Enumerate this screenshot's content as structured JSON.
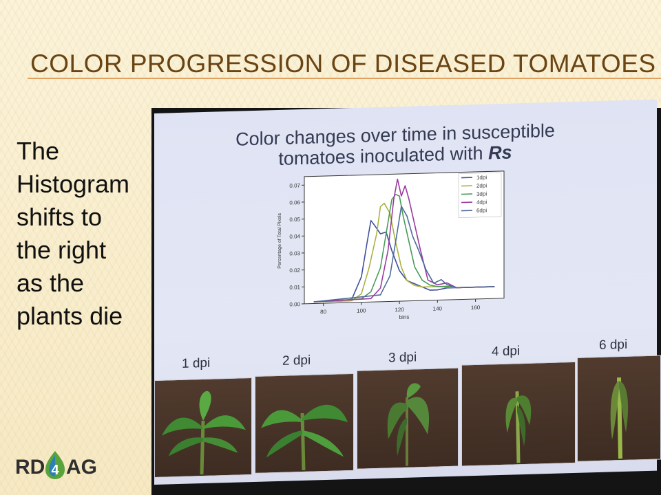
{
  "slide": {
    "title": "COLOR PROGRESSION OF DISEASED TOMATOES",
    "body_lines": [
      "The",
      "Histogram",
      "shifts to",
      "the right",
      "as the",
      "plants die"
    ],
    "logo_text_left": "RD",
    "logo_text_right": "AG",
    "logo_glyph": "4"
  },
  "screen": {
    "title_line1": "Color changes over time in susceptible",
    "title_line2_prefix": "tomatoes inoculated with ",
    "title_line2_italic": "Rs",
    "dpi_labels": [
      "1 dpi",
      "2 dpi",
      "3 dpi",
      "4 dpi",
      "6 dpi"
    ]
  },
  "chart_data": {
    "type": "line",
    "title": "",
    "xlabel": "bins",
    "ylabel": "Percentage of Total Pixels",
    "xlim": [
      70,
      175
    ],
    "ylim": [
      0,
      0.075
    ],
    "xticks": [
      "80",
      "100",
      "120",
      "140",
      "160"
    ],
    "yticks": [
      "0.00",
      "0.01",
      "0.02",
      "0.03",
      "0.04",
      "0.05",
      "0.06",
      "0.07"
    ],
    "legend_position": "top-right",
    "grid": false,
    "series": [
      {
        "name": "1dpi",
        "color": "#3d4f9a",
        "x": [
          75,
          90,
          95,
          100,
          103,
          105,
          107,
          110,
          113,
          116,
          120,
          124,
          128,
          132,
          136,
          140,
          145,
          150,
          160,
          170
        ],
        "y": [
          0.001,
          0.001,
          0.002,
          0.015,
          0.035,
          0.048,
          0.045,
          0.04,
          0.041,
          0.03,
          0.018,
          0.012,
          0.01,
          0.008,
          0.006,
          0.006,
          0.007,
          0.007,
          0.007,
          0.007
        ]
      },
      {
        "name": "2dpi",
        "color": "#a9b240",
        "x": [
          75,
          95,
          100,
          104,
          108,
          110,
          112,
          115,
          118,
          121,
          124,
          128,
          132,
          136,
          140,
          150,
          160,
          170
        ],
        "y": [
          0.001,
          0.001,
          0.005,
          0.02,
          0.04,
          0.056,
          0.058,
          0.052,
          0.035,
          0.02,
          0.012,
          0.009,
          0.008,
          0.008,
          0.008,
          0.007,
          0.007,
          0.007
        ]
      },
      {
        "name": "3dpi",
        "color": "#4a9a5a",
        "x": [
          75,
          100,
          105,
          110,
          113,
          116,
          118,
          120,
          122,
          125,
          128,
          132,
          136,
          140,
          145,
          150,
          160,
          170
        ],
        "y": [
          0.001,
          0.002,
          0.006,
          0.02,
          0.04,
          0.06,
          0.063,
          0.062,
          0.05,
          0.035,
          0.02,
          0.012,
          0.009,
          0.008,
          0.008,
          0.007,
          0.007,
          0.007
        ]
      },
      {
        "name": "4dpi",
        "color": "#9a3aa0",
        "x": [
          75,
          105,
          110,
          114,
          117,
          119,
          121,
          123,
          125,
          128,
          131,
          135,
          140,
          145,
          150,
          160,
          170
        ],
        "y": [
          0.001,
          0.002,
          0.008,
          0.03,
          0.06,
          0.072,
          0.062,
          0.068,
          0.06,
          0.045,
          0.03,
          0.012,
          0.009,
          0.01,
          0.007,
          0.007,
          0.007
        ]
      },
      {
        "name": "6dpi",
        "color": "#4e6a9a",
        "x": [
          75,
          110,
          115,
          118,
          121,
          124,
          127,
          130,
          134,
          138,
          142,
          145,
          150,
          160,
          170
        ],
        "y": [
          0.001,
          0.004,
          0.015,
          0.035,
          0.056,
          0.05,
          0.038,
          0.03,
          0.018,
          0.01,
          0.012,
          0.009,
          0.007,
          0.007,
          0.007
        ]
      }
    ]
  }
}
